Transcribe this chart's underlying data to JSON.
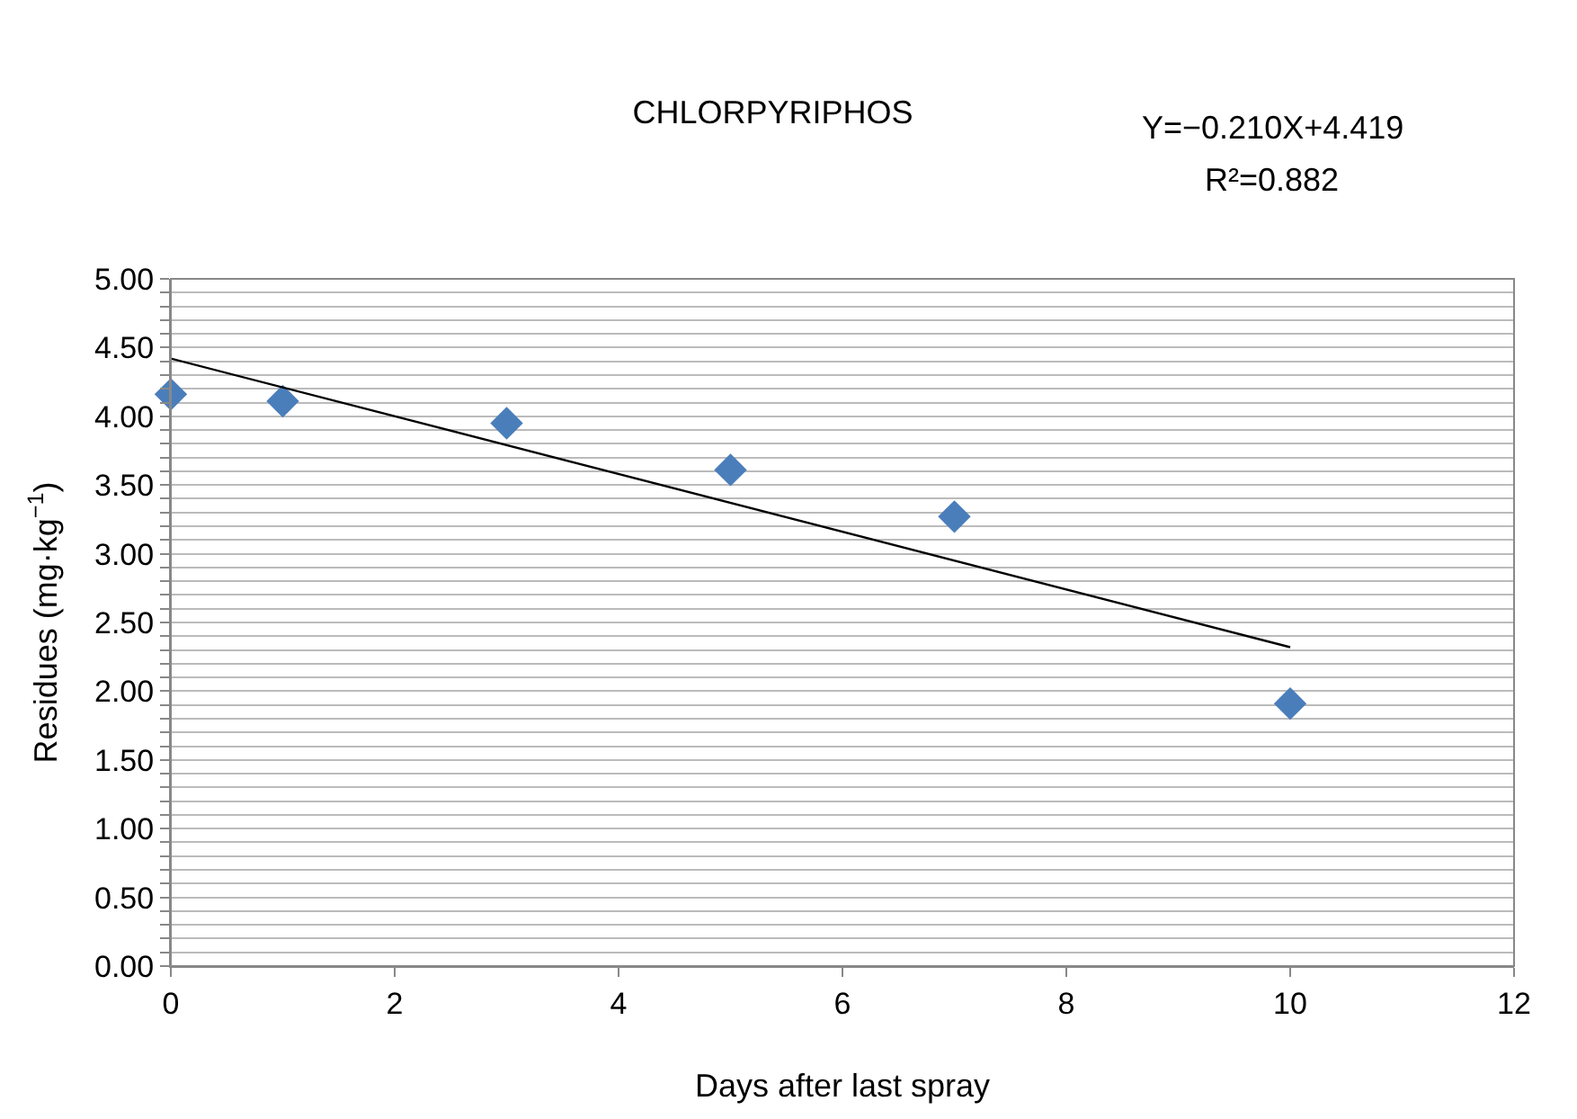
{
  "chart_data": {
    "type": "scatter",
    "title": "CHLORPYRIPHOS",
    "xlabel": "Days after last spray",
    "ylabel": "Residues (mg·kg$^{−1}$)",
    "annotations": [
      "Y=−0.210X+4.419",
      "R²=0.882"
    ],
    "series": [
      {
        "color": "#4a7ebb",
        "marker": "diamond",
        "x": [
          0,
          1,
          3,
          5,
          7,
          10
        ],
        "values": [
          4.16,
          4.11,
          3.95,
          3.61,
          3.27,
          1.91
        ]
      },
      {
        "type": "line",
        "color": "#000000",
        "marker": "none",
        "line_style": "solid",
        "x": [
          0,
          10
        ],
        "values": [
          4.42,
          2.32
        ]
      }
    ],
    "xlim": [
      0,
      12
    ],
    "xticks": [
      0,
      2,
      4,
      6,
      8,
      10,
      12
    ],
    "ylim": [
      0,
      5
    ],
    "yticks": [
      {
        "value": 0,
        "label": "0.00"
      },
      {
        "value": 0.1,
        "label": null
      },
      {
        "value": 0.2,
        "label": null
      },
      {
        "value": 0.3,
        "label": null
      },
      {
        "value": 0.4,
        "label": null
      },
      {
        "value": 0.5,
        "label": "0.50"
      },
      {
        "value": 0.6,
        "label": null
      },
      {
        "value": 0.7,
        "label": null
      },
      {
        "value": 0.8,
        "label": null
      },
      {
        "value": 0.9,
        "label": null
      },
      {
        "value": 1,
        "label": "1.00"
      },
      {
        "value": 1.1,
        "label": null
      },
      {
        "value": 1.2,
        "label": null
      },
      {
        "value": 1.3,
        "label": null
      },
      {
        "value": 1.4,
        "label": null
      },
      {
        "value": 1.5,
        "label": "1.50"
      },
      {
        "value": 1.6,
        "label": null
      },
      {
        "value": 1.7,
        "label": null
      },
      {
        "value": 1.8,
        "label": null
      },
      {
        "value": 1.9,
        "label": null
      },
      {
        "value": 2,
        "label": "2.00"
      },
      {
        "value": 2.1,
        "label": null
      },
      {
        "value": 2.2,
        "label": null
      },
      {
        "value": 2.3,
        "label": null
      },
      {
        "value": 2.4,
        "label": null
      },
      {
        "value": 2.5,
        "label": "2.50"
      },
      {
        "value": 2.6,
        "label": null
      },
      {
        "value": 2.7,
        "label": null
      },
      {
        "value": 2.8,
        "label": null
      },
      {
        "value": 2.9,
        "label": null
      },
      {
        "value": 3,
        "label": "3.00"
      },
      {
        "value": 3.1,
        "label": null
      },
      {
        "value": 3.2,
        "label": null
      },
      {
        "value": 3.3,
        "label": null
      },
      {
        "value": 3.4,
        "label": null
      },
      {
        "value": 3.5,
        "label": "3.50"
      },
      {
        "value": 3.6,
        "label": null
      },
      {
        "value": 3.7,
        "label": null
      },
      {
        "value": 3.8,
        "label": null
      },
      {
        "value": 3.9,
        "label": null
      },
      {
        "value": 4,
        "label": "4.00"
      },
      {
        "value": 4.1,
        "label": null
      },
      {
        "value": 4.2,
        "label": null
      },
      {
        "value": 4.3,
        "label": null
      },
      {
        "value": 4.4,
        "label": null
      },
      {
        "value": 4.5,
        "label": "4.50"
      },
      {
        "value": 4.6,
        "label": null
      },
      {
        "value": 4.7,
        "label": null
      },
      {
        "value": 4.8,
        "label": null
      },
      {
        "value": 4.9,
        "label": null
      },
      {
        "value": 5,
        "label": "5.00"
      }
    ],
    "grid": "y"
  }
}
